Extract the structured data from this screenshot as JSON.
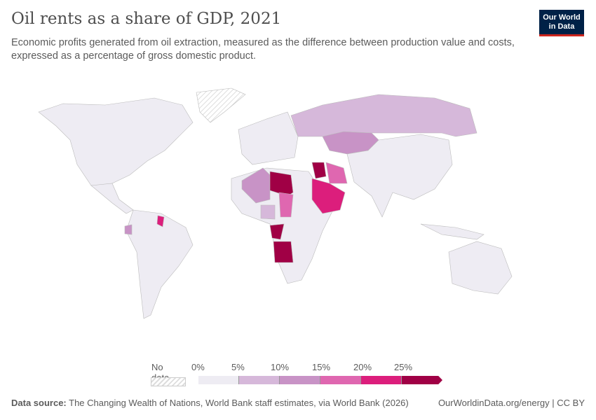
{
  "header": {
    "title": "Oil rents as a share of GDP, 2021",
    "subtitle": "Economic profits generated from oil extraction, measured as the difference between production value and costs, expressed as a percentage of gross domestic product."
  },
  "logo": {
    "line1": "Our World",
    "line2": "in Data"
  },
  "legend": {
    "no_data_label": "No data",
    "ticks": [
      "0%",
      "5%",
      "10%",
      "15%",
      "20%",
      "25%"
    ],
    "colors": [
      "#eeecf3",
      "#d6b8da",
      "#c893c6",
      "#df67b0",
      "#dc1e7c",
      "#a00045"
    ],
    "no_data_color": "#e0e0e0"
  },
  "map": {
    "highlighted": [
      {
        "region": "Russia",
        "bin": 1
      },
      {
        "region": "Kazakhstan",
        "bin": 2
      },
      {
        "region": "Algeria",
        "bin": 2
      },
      {
        "region": "Libya",
        "bin": 5
      },
      {
        "region": "Iraq",
        "bin": 5
      },
      {
        "region": "Saudi Arabia",
        "bin": 4
      },
      {
        "region": "Iran",
        "bin": 3
      },
      {
        "region": "Chad",
        "bin": 3
      },
      {
        "region": "Congo",
        "bin": 5
      },
      {
        "region": "Gabon",
        "bin": 4
      },
      {
        "region": "Angola",
        "bin": 5
      },
      {
        "region": "Guyana",
        "bin": 4
      },
      {
        "region": "Ecuador",
        "bin": 2
      },
      {
        "region": "Nigeria",
        "bin": 1
      }
    ]
  },
  "footer": {
    "source_label": "Data source:",
    "source_text": " The Changing Wealth of Nations, World Bank staff estimates, via World Bank (2026)",
    "right": "OurWorldinData.org/energy | CC BY"
  }
}
